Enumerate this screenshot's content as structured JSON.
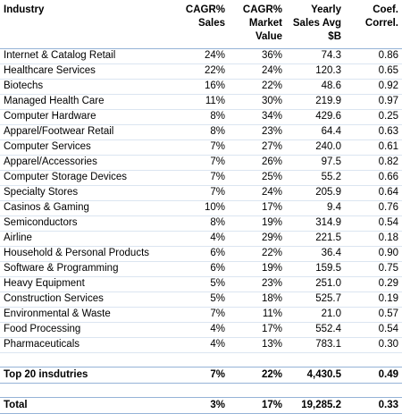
{
  "table": {
    "header": [
      "Industry",
      "CAGR%\nSales",
      "CAGR%\nMarket\nValue",
      "Yearly\nSales Avg\n$B",
      "Coef.\nCorrel."
    ],
    "rows": [
      [
        "Internet & Catalog Retail",
        "24%",
        "36%",
        "74.3",
        "0.86"
      ],
      [
        "Healthcare Services",
        "22%",
        "24%",
        "120.3",
        "0.65"
      ],
      [
        "Biotechs",
        "16%",
        "22%",
        "48.6",
        "0.92"
      ],
      [
        "Managed Health Care",
        "11%",
        "30%",
        "219.9",
        "0.97"
      ],
      [
        "Computer Hardware",
        "8%",
        "34%",
        "429.6",
        "0.25"
      ],
      [
        "Apparel/Footwear Retail",
        "8%",
        "23%",
        "64.4",
        "0.63"
      ],
      [
        "Computer Services",
        "7%",
        "27%",
        "240.0",
        "0.61"
      ],
      [
        "Apparel/Accessories",
        "7%",
        "26%",
        "97.5",
        "0.82"
      ],
      [
        "Computer Storage Devices",
        "7%",
        "25%",
        "55.2",
        "0.66"
      ],
      [
        "Specialty Stores",
        "7%",
        "24%",
        "205.9",
        "0.64"
      ],
      [
        "Casinos & Gaming",
        "10%",
        "17%",
        "9.4",
        "0.76"
      ],
      [
        "Semiconductors",
        "8%",
        "19%",
        "314.9",
        "0.54"
      ],
      [
        "Airline",
        "4%",
        "29%",
        "221.5",
        "0.18"
      ],
      [
        "Household & Personal Products",
        "6%",
        "22%",
        "36.4",
        "0.90"
      ],
      [
        "Software & Programming",
        "6%",
        "19%",
        "159.5",
        "0.75"
      ],
      [
        "Heavy Equipment",
        "5%",
        "23%",
        "251.0",
        "0.29"
      ],
      [
        "Construction Services",
        "5%",
        "18%",
        "525.7",
        "0.19"
      ],
      [
        "Environmental & Waste",
        "7%",
        "11%",
        "21.0",
        "0.57"
      ],
      [
        "Food Processing",
        "4%",
        "17%",
        "552.4",
        "0.54"
      ],
      [
        "Pharmaceuticals",
        "4%",
        "13%",
        "783.1",
        "0.30"
      ]
    ],
    "summary_rows": [
      [
        "Top 20 insdutries",
        "7%",
        "22%",
        "4,430.5",
        "0.49"
      ],
      [
        "Total",
        "3%",
        "17%",
        "19,285.2",
        "0.33"
      ]
    ]
  }
}
